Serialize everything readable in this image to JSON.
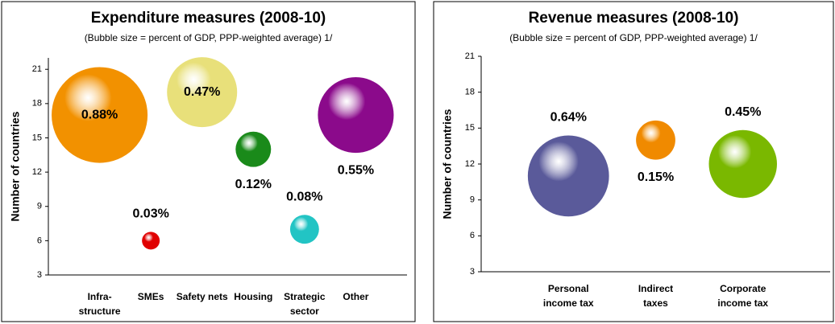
{
  "chart_data": [
    {
      "type": "bubble",
      "title": "Expenditure measures (2008-10)",
      "subtitle": "(Bubble size = percent of GDP, PPP-weighted average) 1/",
      "ylabel": "Number of countries",
      "categories": [
        "Infra-\nstructure",
        "SMEs",
        "Safety nets",
        "Housing",
        "Strategic\nsector",
        "Other"
      ],
      "values": [
        17,
        6,
        19,
        14,
        7,
        17
      ],
      "sizes": [
        0.88,
        0.03,
        0.47,
        0.12,
        0.08,
        0.55
      ],
      "value_labels": [
        "0.88%",
        "0.03%",
        "0.47%",
        "0.12%",
        "0.08%",
        "0.55%"
      ],
      "colors": [
        "#f29100",
        "#e00000",
        "#e8e07a",
        "#1a8a1a",
        "#22c4c4",
        "#8b0a8b"
      ],
      "label_positions": [
        "center",
        "above",
        "center",
        "below",
        "above",
        "below"
      ],
      "ylim": [
        3,
        22
      ],
      "yticks": [
        3,
        6,
        9,
        12,
        15,
        18,
        21
      ]
    },
    {
      "type": "bubble",
      "title": "Revenue measures (2008-10)",
      "subtitle": "(Bubble size = percent of GDP, PPP-weighted average) 1/",
      "ylabel": "Number of countries",
      "categories": [
        "Personal\nincome tax",
        "Indirect\ntaxes",
        "Corporate\nincome tax"
      ],
      "values": [
        11,
        14,
        12
      ],
      "sizes": [
        0.64,
        0.15,
        0.45
      ],
      "value_labels": [
        "0.64%",
        "0.15%",
        "0.45%"
      ],
      "colors": [
        "#5a5a9a",
        "#f08a00",
        "#7ab800"
      ],
      "label_positions": [
        "above",
        "below",
        "above"
      ],
      "ylim": [
        3,
        21
      ],
      "yticks": [
        3,
        6,
        9,
        12,
        15,
        18,
        21
      ]
    }
  ]
}
